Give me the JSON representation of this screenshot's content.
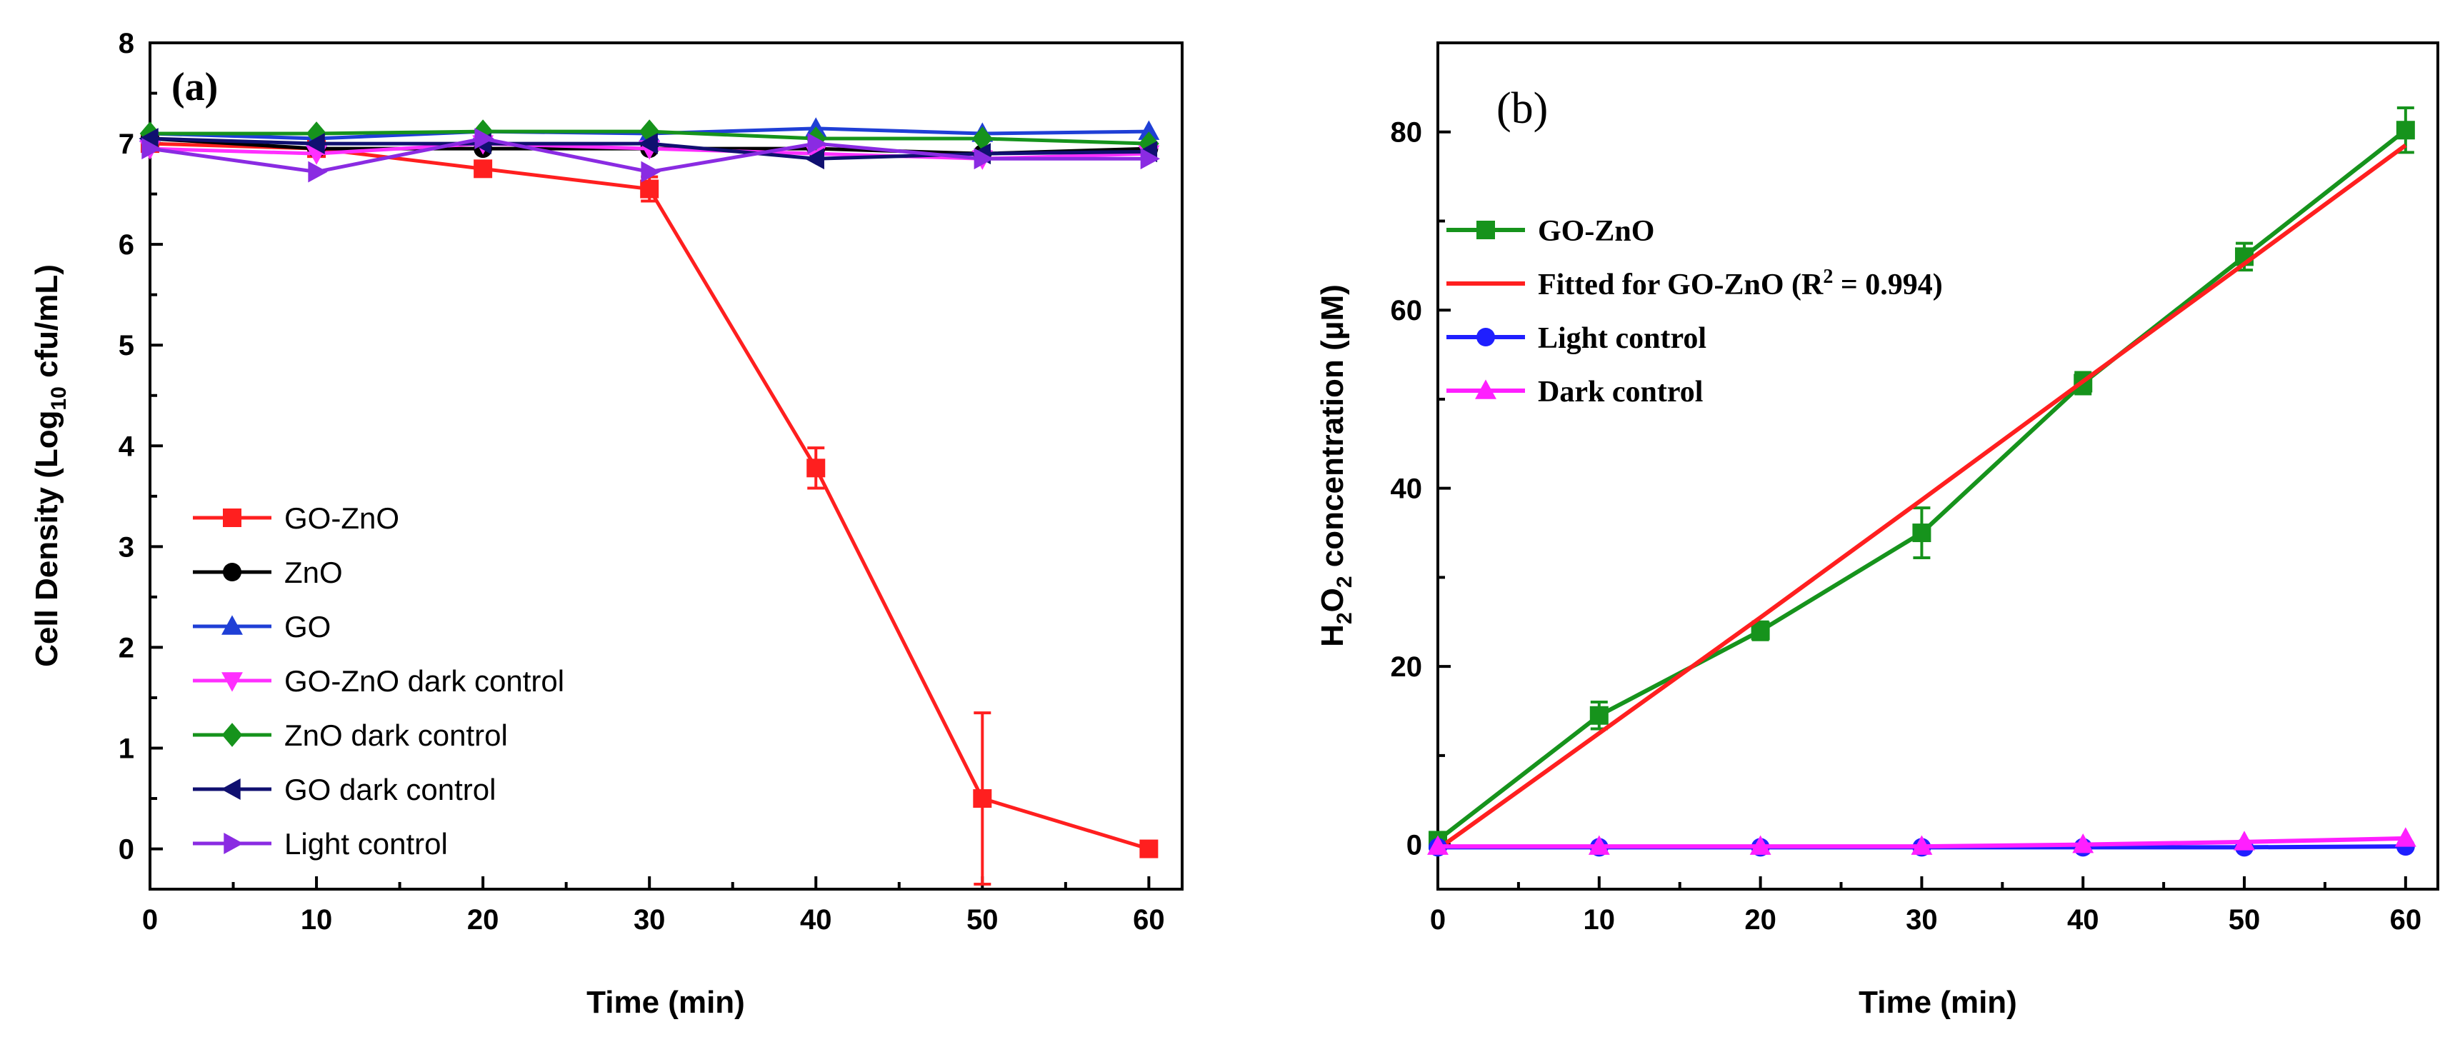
{
  "chart_data": [
    {
      "type": "line",
      "panel_label": "(a)",
      "xlabel": "Time (min)",
      "ylabel_main": "Cell Density (Log",
      "ylabel_sub": "10",
      "ylabel_tail": " cfu/mL)",
      "xlim": [
        0,
        62
      ],
      "ylim": [
        -0.4,
        8
      ],
      "xticks": [
        0,
        10,
        20,
        30,
        40,
        50,
        60
      ],
      "yticks": [
        0,
        1,
        2,
        3,
        4,
        5,
        6,
        7,
        8
      ],
      "x": [
        0,
        10,
        20,
        30,
        40,
        50,
        60
      ],
      "series": [
        {
          "name": "GO-ZnO",
          "color": "#ff1f1f",
          "marker": "square",
          "values": [
            7.0,
            6.95,
            6.75,
            6.55,
            3.78,
            0.5,
            0.0
          ],
          "errors": [
            0,
            0,
            0,
            0.12,
            0.2,
            0.85,
            0
          ]
        },
        {
          "name": "ZnO",
          "color": "#000000",
          "marker": "circle",
          "values": [
            7.05,
            6.95,
            6.95,
            6.95,
            6.95,
            6.9,
            6.95
          ]
        },
        {
          "name": "GO",
          "color": "#1f3fd6",
          "marker": "triangle-up",
          "values": [
            7.1,
            7.05,
            7.12,
            7.1,
            7.15,
            7.1,
            7.12
          ]
        },
        {
          "name": "GO-ZnO dark control",
          "color": "#ff2fff",
          "marker": "triangle-down",
          "values": [
            6.95,
            6.9,
            7.0,
            6.95,
            6.9,
            6.85,
            6.9
          ]
        },
        {
          "name": "ZnO dark control",
          "color": "#16931c",
          "marker": "diamond",
          "values": [
            7.1,
            7.1,
            7.12,
            7.12,
            7.05,
            7.05,
            7.0
          ]
        },
        {
          "name": "GO dark control",
          "color": "#101070",
          "marker": "triangle-left",
          "values": [
            7.05,
            7.0,
            7.0,
            7.0,
            6.85,
            6.9,
            6.92
          ]
        },
        {
          "name": "Light control",
          "color": "#8a2be2",
          "marker": "triangle-right",
          "values": [
            6.95,
            6.72,
            7.05,
            6.72,
            7.0,
            6.85,
            6.85
          ]
        }
      ]
    },
    {
      "type": "line",
      "panel_label": "(b)",
      "xlabel": "Time (min)",
      "ylabel_main": "H",
      "ylabel_sub1": "2",
      "ylabel_mid": "O",
      "ylabel_sub2": "2",
      "ylabel_tail": " concentration (μM)",
      "xlim": [
        0,
        62
      ],
      "ylim": [
        -5,
        90
      ],
      "xticks": [
        0,
        10,
        20,
        30,
        40,
        50,
        60
      ],
      "yticks": [
        0,
        20,
        40,
        60,
        80
      ],
      "x": [
        0,
        10,
        20,
        30,
        40,
        50,
        60
      ],
      "series": [
        {
          "name": "GO-ZnO",
          "color": "#16931c",
          "marker": "square",
          "values": [
            0.5,
            14.5,
            24.0,
            35.0,
            51.8,
            66.0,
            80.2
          ],
          "errors": [
            0,
            1.5,
            1.0,
            2.8,
            1.2,
            1.5,
            2.5
          ]
        },
        {
          "name": "Fitted for GO-ZnO (R",
          "name_sup": "2",
          "name_tail": " = 0.994)",
          "color": "#ff1f1f",
          "marker": "none",
          "values": [
            -0.5,
            12.5,
            25.5,
            38.7,
            52.0,
            65.2,
            78.5
          ]
        },
        {
          "name": "Light control",
          "color": "#1f1fff",
          "marker": "circle",
          "values": [
            -0.3,
            -0.3,
            -0.3,
            -0.3,
            -0.3,
            -0.3,
            -0.2
          ]
        },
        {
          "name": "Dark control",
          "color": "#ff1fff",
          "marker": "triangle-up",
          "values": [
            -0.2,
            -0.2,
            -0.2,
            -0.2,
            0.0,
            0.3,
            0.7
          ]
        }
      ]
    }
  ]
}
